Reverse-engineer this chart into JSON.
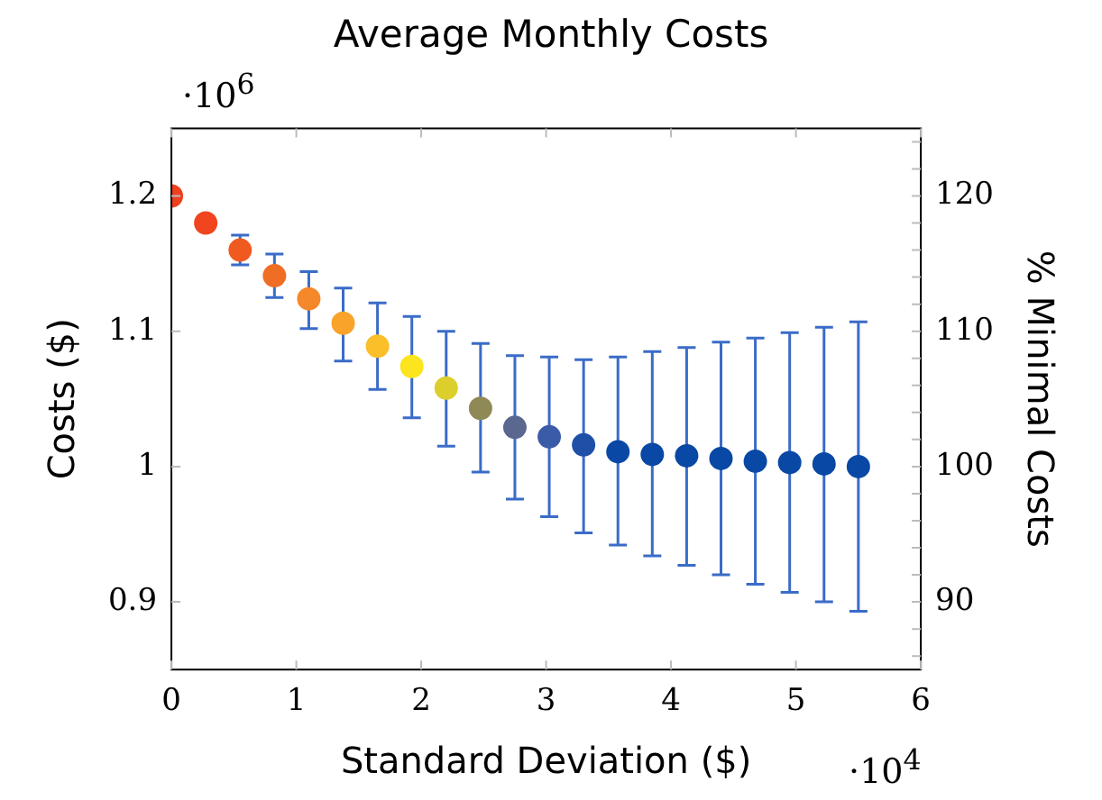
{
  "chart_data": {
    "type": "scatter",
    "title": "Average Monthly Costs",
    "xlabel": "Standard Deviation ($)",
    "ylabel": "Costs ($)",
    "y2label": "% Minimal Costs",
    "annotations": [
      "·10$^{6}$",
      "·10$^{4}$"
    ],
    "x": [
      0,
      0.275,
      0.55,
      0.825,
      1.1,
      1.375,
      1.65,
      1.925,
      2.2,
      2.475,
      2.75,
      3.025,
      3.3,
      3.575,
      3.85,
      4.125,
      4.4,
      4.675,
      4.95,
      5.225,
      5.5
    ],
    "values": [
      1.2,
      1.18,
      1.16,
      1.141,
      1.124,
      1.106,
      1.089,
      1.074,
      1.058,
      1.043,
      1.029,
      1.022,
      1.016,
      1.011,
      1.009,
      1.008,
      1.006,
      1.004,
      1.003,
      1.002,
      1.0
    ],
    "errors": [
      null,
      null,
      [
        1.149,
        1.171
      ],
      [
        1.125,
        1.157
      ],
      [
        1.102,
        1.144
      ],
      [
        1.078,
        1.132
      ],
      [
        1.057,
        1.121
      ],
      [
        1.036,
        1.111
      ],
      [
        1.015,
        1.1
      ],
      [
        0.996,
        1.091
      ],
      [
        0.976,
        1.082
      ],
      [
        0.963,
        1.081
      ],
      [
        0.951,
        1.079
      ],
      [
        0.942,
        1.081
      ],
      [
        0.934,
        1.085
      ],
      [
        0.927,
        1.088
      ],
      [
        0.92,
        1.092
      ],
      [
        0.913,
        1.095
      ],
      [
        0.907,
        1.099
      ],
      [
        0.9,
        1.103
      ],
      [
        0.893,
        1.107
      ]
    ],
    "colors": [
      "#f0401e",
      "#f0451e",
      "#f05a20",
      "#f06e24",
      "#f5882a",
      "#f9a32a",
      "#fbbf2a",
      "#fce41e",
      "#dccf2c",
      "#8f8a55",
      "#5a6890",
      "#3a5ca8",
      "#1e50a8",
      "#0a48a5",
      "#0a48a5",
      "#0a48a5",
      "#0a48a5",
      "#0a48a5",
      "#0a48a5",
      "#0a48a5",
      "#0a48a5"
    ],
    "xlim": [
      0,
      6
    ],
    "xticks": [
      0,
      1,
      2,
      3,
      4,
      5,
      6
    ],
    "ylim": [
      0.85,
      1.25
    ],
    "yticks": [
      0.9,
      1,
      1.1,
      1.2
    ],
    "y2lim": [
      85,
      125
    ],
    "y2ticks": [
      {
        "value": 86,
        "label": null
      },
      {
        "value": 88,
        "label": null
      },
      90,
      {
        "value": 92,
        "label": null
      },
      {
        "value": 94,
        "label": null
      },
      {
        "value": 96,
        "label": null
      },
      {
        "value": 98,
        "label": null
      },
      100,
      {
        "value": 102,
        "label": null
      },
      {
        "value": 104,
        "label": null
      },
      {
        "value": 106,
        "label": null
      },
      {
        "value": 108,
        "label": null
      },
      110,
      {
        "value": 112,
        "label": null
      },
      {
        "value": 114,
        "label": null
      },
      {
        "value": 116,
        "label": null
      },
      {
        "value": 118,
        "label": null
      },
      120,
      {
        "value": 122,
        "label": null
      },
      {
        "value": 124,
        "label": null
      }
    ],
    "marker": "circle",
    "legend": false,
    "grid": false
  }
}
